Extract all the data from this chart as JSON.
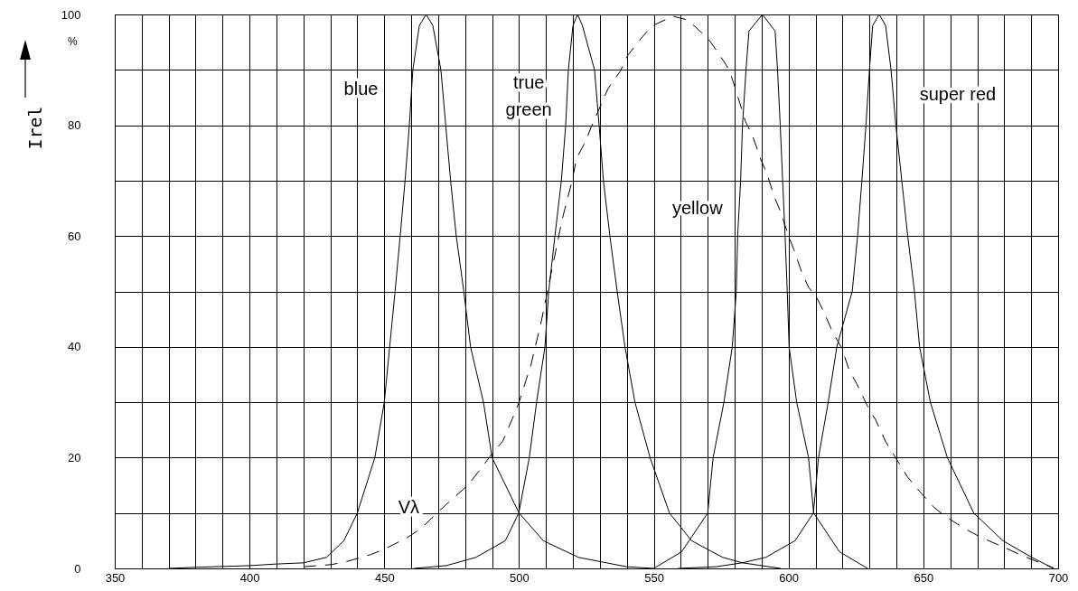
{
  "chart_data": {
    "type": "line",
    "ylabel": "Irel",
    "xlim": [
      350,
      700
    ],
    "ylim": [
      0,
      100
    ],
    "xticks": [
      350,
      {
        "value": 360,
        "label": null
      },
      {
        "value": 370,
        "label": null
      },
      {
        "value": 380,
        "label": null
      },
      {
        "value": 390,
        "label": null
      },
      400,
      {
        "value": 410,
        "label": null
      },
      {
        "value": 420,
        "label": null
      },
      {
        "value": 430,
        "label": null
      },
      {
        "value": 440,
        "label": null
      },
      450,
      {
        "value": 460,
        "label": null
      },
      {
        "value": 470,
        "label": null
      },
      {
        "value": 480,
        "label": null
      },
      {
        "value": 490,
        "label": null
      },
      500,
      {
        "value": 510,
        "label": null
      },
      {
        "value": 520,
        "label": null
      },
      {
        "value": 530,
        "label": null
      },
      {
        "value": 540,
        "label": null
      },
      550,
      {
        "value": 560,
        "label": null
      },
      {
        "value": 570,
        "label": null
      },
      {
        "value": 580,
        "label": null
      },
      {
        "value": 590,
        "label": null
      },
      600,
      {
        "value": 610,
        "label": null
      },
      {
        "value": 620,
        "label": null
      },
      {
        "value": 630,
        "label": null
      },
      {
        "value": 640,
        "label": null
      },
      650,
      {
        "value": 660,
        "label": null
      },
      {
        "value": 670,
        "label": null
      },
      {
        "value": 680,
        "label": null
      },
      {
        "value": 690,
        "label": null
      },
      700
    ],
    "yticks": [
      0,
      {
        "value": 10,
        "label": null
      },
      20,
      {
        "value": 30,
        "label": null
      },
      40,
      {
        "value": 50,
        "label": null
      },
      60,
      {
        "value": 70,
        "label": null
      },
      80,
      {
        "value": 90,
        "label": null
      },
      100
    ],
    "grid": true,
    "series": [
      {
        "name": "blue",
        "color": "#000000",
        "x": [
          370,
          380,
          400,
          410,
          420,
          428.6,
          435,
          440,
          446.5,
          450,
          454,
          455.9,
          457.7,
          459.3,
          460.6,
          463,
          465.5,
          468,
          471,
          472.8,
          474.6,
          476.7,
          479.5,
          482,
          486.8,
          490,
          500,
          509,
          522,
          532.5,
          540,
          550
        ],
        "values": [
          0,
          0.2,
          0.5,
          0.8,
          1,
          2,
          5,
          10,
          20,
          30,
          50,
          60,
          70,
          80,
          90,
          98,
          100,
          98,
          90,
          80,
          70,
          60,
          50,
          40,
          30,
          20,
          10,
          5,
          2,
          1,
          0.3,
          0
        ]
      },
      {
        "name": "true\ngreen",
        "color": "#000000",
        "x": [
          461,
          473,
          484,
          494.9,
          499.9,
          503.8,
          506.5,
          509.6,
          511,
          513.3,
          515.7,
          517.3,
          518.3,
          520,
          521.7,
          523.5,
          528,
          529.7,
          531.3,
          533.7,
          536.4,
          539.3,
          543,
          548.6,
          555.8,
          564,
          575.5,
          583,
          597
        ],
        "values": [
          0,
          0.5,
          2,
          5,
          10,
          20,
          30,
          40,
          50,
          60,
          70,
          80,
          90,
          98,
          100,
          98,
          90,
          80,
          70,
          60,
          50,
          40,
          30,
          20,
          10,
          5,
          2,
          1,
          0
        ]
      },
      {
        "name": "yellow",
        "color": "#000000",
        "x": [
          550,
          560.3,
          570,
          572,
          576,
          579.1,
          580.6,
          581.1,
          582.2,
          582.9,
          584.2,
          585.3,
          590.3,
          595,
          595.9,
          596.9,
          597.8,
          598.7,
          599.5,
          600.2,
          603,
          607.4,
          609.3,
          618.9,
          629.3
        ],
        "values": [
          0,
          3,
          10,
          20,
          30,
          40,
          50,
          60,
          70,
          80,
          90,
          97,
          100,
          97,
          90,
          80,
          70,
          60,
          50,
          40,
          30,
          20,
          10,
          3,
          0
        ]
      },
      {
        "name": "Vλ",
        "color": "#000000",
        "line_style": "dashed",
        "x": [
          420,
          430.5,
          436.5,
          445,
          450.6,
          458.6,
          463.6,
          470,
          474,
          481,
          485,
          490,
          494,
          497.5,
          500,
          502.6,
          504.4,
          506.5,
          508,
          516,
          519.7,
          521.3,
          524.6,
          526.7,
          530.3,
          533,
          537.6,
          540.3,
          545.3,
          549.3,
          557,
          562.6,
          570,
          573.3,
          578,
          580,
          584,
          586.7,
          589.6,
          592,
          594.7,
          597,
          600,
          602,
          605,
          607.5,
          610.5,
          612.8,
          616.4,
          619.5,
          622.5,
          625.4,
          629.3,
          632.3,
          636,
          639.3,
          644,
          647.7,
          654,
          658.4,
          666,
          671.4,
          679.5,
          684.9,
          693.3,
          698.3
        ],
        "values": [
          0.3,
          0.7,
          1.3,
          2.5,
          3.6,
          5.6,
          7.2,
          10.2,
          12,
          15,
          17.5,
          20.7,
          23,
          27,
          30,
          34,
          36.7,
          41,
          44,
          63,
          70,
          74,
          77,
          79.6,
          83.6,
          86.6,
          89.8,
          92.6,
          95.7,
          97.9,
          99.7,
          99,
          95.7,
          93.5,
          90,
          87,
          80.7,
          78,
          73.9,
          71.2,
          67.1,
          64.4,
          60,
          57.5,
          53.3,
          50.7,
          48.8,
          46.6,
          42.6,
          40,
          35.8,
          33.2,
          29.3,
          26.8,
          22.9,
          20.3,
          16.6,
          14.4,
          11,
          9.3,
          7,
          5.6,
          3.9,
          2.7,
          1,
          0.1
        ]
      },
      {
        "name": "super red",
        "color": "#000000",
        "x": [
          559,
          573,
          582.7,
          591.6,
          602.4,
          609.2,
          611.1,
          614.7,
          617.9,
          623.6,
          625.6,
          627.2,
          628.7,
          630,
          631.2,
          633.6,
          636,
          638,
          639.8,
          642,
          644.2,
          646.7,
          648.6,
          652.6,
          658.9,
          668.7,
          679.5,
          690.2,
          698.3
        ],
        "values": [
          0,
          0.3,
          1,
          2,
          5,
          10,
          20,
          30,
          40,
          50,
          60,
          70,
          80,
          90,
          98,
          100,
          98,
          90,
          80,
          70,
          60,
          50,
          40,
          30,
          20,
          10,
          5,
          2,
          0
        ]
      }
    ],
    "annotations": [
      "%"
    ]
  }
}
